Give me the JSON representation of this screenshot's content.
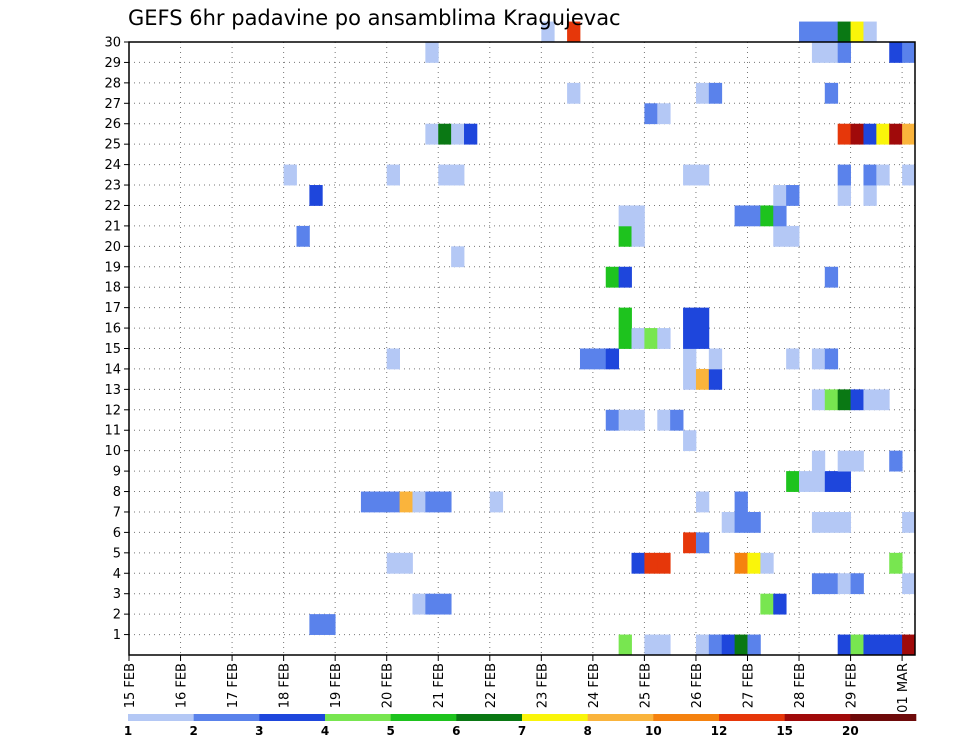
{
  "chart_data": {
    "type": "heatmap",
    "title": "GEFS 6hr padavine po ansamblima Kragujevac",
    "y_ticks": [
      "1",
      "2",
      "3",
      "4",
      "5",
      "6",
      "7",
      "8",
      "9",
      "10",
      "11",
      "12",
      "13",
      "14",
      "15",
      "16",
      "17",
      "18",
      "19",
      "20",
      "21",
      "22",
      "23",
      "24",
      "25",
      "26",
      "27",
      "28",
      "29",
      "30"
    ],
    "x_ticks": [
      "15 FEB",
      "16 FEB",
      "17 FEB",
      "18 FEB",
      "19 FEB",
      "20 FEB",
      "21 FEB",
      "22 FEB",
      "23 FEB",
      "24 FEB",
      "25 FEB",
      "26 FEB",
      "27 FEB",
      "28 FEB",
      "29 FEB",
      "01 MAR"
    ],
    "x_ticks_note": "each date tick = 00 UTC; 4 six-hour steps per day",
    "colorbar": {
      "labels": [
        "1",
        "2",
        "3",
        "4",
        "5",
        "6",
        "7",
        "8",
        "10",
        "12",
        "15",
        "20"
      ],
      "colors": [
        "#b4c8f5",
        "#5a82eb",
        "#1e46dc",
        "#78e650",
        "#1ec31e",
        "#0a7814",
        "#faf50a",
        "#fab43c",
        "#f5820f",
        "#e6370a",
        "#a00a0a",
        "#6e0a0a"
      ]
    },
    "cells": [
      {
        "m": 1,
        "s": 14,
        "v": 2
      },
      {
        "m": 1,
        "s": 15,
        "v": 2
      },
      {
        "m": 2,
        "s": 22,
        "v": 1
      },
      {
        "m": 2,
        "s": 23,
        "v": 2
      },
      {
        "m": 2,
        "s": 24,
        "v": 2
      },
      {
        "m": 2,
        "s": 49,
        "v": 4
      },
      {
        "m": 2,
        "s": 50,
        "v": 3
      },
      {
        "m": 3,
        "s": 53,
        "v": 2
      },
      {
        "m": 3,
        "s": 54,
        "v": 2
      },
      {
        "m": 3,
        "s": 55,
        "v": 1
      },
      {
        "m": 3,
        "s": 56,
        "v": 2
      },
      {
        "m": 3,
        "s": 60,
        "v": 1
      },
      {
        "m": 4,
        "s": 20,
        "v": 1
      },
      {
        "m": 4,
        "s": 21,
        "v": 1
      },
      {
        "m": 4,
        "s": 39,
        "v": 3
      },
      {
        "m": 4,
        "s": 40,
        "v": 12
      },
      {
        "m": 4,
        "s": 41,
        "v": 12
      },
      {
        "m": 4,
        "s": 47,
        "v": 10
      },
      {
        "m": 4,
        "s": 48,
        "v": 7
      },
      {
        "m": 4,
        "s": 49,
        "v": 1
      },
      {
        "m": 4,
        "s": 59,
        "v": 4
      },
      {
        "m": 5,
        "s": 43,
        "v": 12
      },
      {
        "m": 5,
        "s": 44,
        "v": 2
      },
      {
        "m": 6,
        "s": 46,
        "v": 1
      },
      {
        "m": 6,
        "s": 47,
        "v": 2
      },
      {
        "m": 6,
        "s": 48,
        "v": 2
      },
      {
        "m": 6,
        "s": 53,
        "v": 1
      },
      {
        "m": 6,
        "s": 54,
        "v": 1
      },
      {
        "m": 6,
        "s": 55,
        "v": 1
      },
      {
        "m": 6,
        "s": 60,
        "v": 1
      },
      {
        "m": 7,
        "s": 18,
        "v": 2
      },
      {
        "m": 7,
        "s": 19,
        "v": 2
      },
      {
        "m": 7,
        "s": 20,
        "v": 2
      },
      {
        "m": 7,
        "s": 21,
        "v": 8
      },
      {
        "m": 7,
        "s": 22,
        "v": 1
      },
      {
        "m": 7,
        "s": 23,
        "v": 2
      },
      {
        "m": 7,
        "s": 24,
        "v": 2
      },
      {
        "m": 7,
        "s": 28,
        "v": 1
      },
      {
        "m": 7,
        "s": 44,
        "v": 1
      },
      {
        "m": 7,
        "s": 47,
        "v": 2
      },
      {
        "m": 8,
        "s": 51,
        "v": 5
      },
      {
        "m": 8,
        "s": 52,
        "v": 1
      },
      {
        "m": 8,
        "s": 53,
        "v": 1
      },
      {
        "m": 8,
        "s": 54,
        "v": 3
      },
      {
        "m": 8,
        "s": 55,
        "v": 3
      },
      {
        "m": 9,
        "s": 53,
        "v": 1
      },
      {
        "m": 9,
        "s": 55,
        "v": 1
      },
      {
        "m": 9,
        "s": 56,
        "v": 1
      },
      {
        "m": 9,
        "s": 59,
        "v": 2
      },
      {
        "m": 10,
        "s": 43,
        "v": 1
      },
      {
        "m": 11,
        "s": 37,
        "v": 2
      },
      {
        "m": 11,
        "s": 38,
        "v": 1
      },
      {
        "m": 11,
        "s": 39,
        "v": 1
      },
      {
        "m": 11,
        "s": 41,
        "v": 1
      },
      {
        "m": 11,
        "s": 42,
        "v": 2
      },
      {
        "m": 12,
        "s": 53,
        "v": 1
      },
      {
        "m": 12,
        "s": 54,
        "v": 4
      },
      {
        "m": 12,
        "s": 55,
        "v": 6
      },
      {
        "m": 12,
        "s": 56,
        "v": 3
      },
      {
        "m": 12,
        "s": 57,
        "v": 1
      },
      {
        "m": 12,
        "s": 58,
        "v": 1
      },
      {
        "m": 13,
        "s": 43,
        "v": 1
      },
      {
        "m": 13,
        "s": 44,
        "v": 8
      },
      {
        "m": 13,
        "s": 45,
        "v": 3
      },
      {
        "m": 14,
        "s": 20,
        "v": 1
      },
      {
        "m": 14,
        "s": 35,
        "v": 2
      },
      {
        "m": 14,
        "s": 36,
        "v": 2
      },
      {
        "m": 14,
        "s": 37,
        "v": 3
      },
      {
        "m": 14,
        "s": 43,
        "v": 1
      },
      {
        "m": 14,
        "s": 45,
        "v": 1
      },
      {
        "m": 14,
        "s": 51,
        "v": 1
      },
      {
        "m": 14,
        "s": 53,
        "v": 1
      },
      {
        "m": 14,
        "s": 54,
        "v": 2
      },
      {
        "m": 15,
        "s": 38,
        "v": 5
      },
      {
        "m": 15,
        "s": 39,
        "v": 1
      },
      {
        "m": 15,
        "s": 40,
        "v": 4
      },
      {
        "m": 15,
        "s": 41,
        "v": 1
      },
      {
        "m": 15,
        "s": 43,
        "v": 3
      },
      {
        "m": 15,
        "s": 44,
        "v": 3
      },
      {
        "m": 16,
        "s": 38,
        "v": 5
      },
      {
        "m": 16,
        "s": 43,
        "v": 3
      },
      {
        "m": 16,
        "s": 44,
        "v": 3
      },
      {
        "m": 18,
        "s": 37,
        "v": 5
      },
      {
        "m": 18,
        "s": 38,
        "v": 3
      },
      {
        "m": 18,
        "s": 54,
        "v": 2
      },
      {
        "m": 19,
        "s": 25,
        "v": 1
      },
      {
        "m": 20,
        "s": 13,
        "v": 2
      },
      {
        "m": 20,
        "s": 38,
        "v": 5
      },
      {
        "m": 20,
        "s": 39,
        "v": 1
      },
      {
        "m": 20,
        "s": 50,
        "v": 1
      },
      {
        "m": 20,
        "s": 51,
        "v": 1
      },
      {
        "m": 21,
        "s": 38,
        "v": 1
      },
      {
        "m": 21,
        "s": 39,
        "v": 1
      },
      {
        "m": 21,
        "s": 47,
        "v": 2
      },
      {
        "m": 21,
        "s": 48,
        "v": 2
      },
      {
        "m": 21,
        "s": 49,
        "v": 5
      },
      {
        "m": 21,
        "s": 50,
        "v": 2
      },
      {
        "m": 22,
        "s": 14,
        "v": 3
      },
      {
        "m": 22,
        "s": 50,
        "v": 1
      },
      {
        "m": 22,
        "s": 51,
        "v": 2
      },
      {
        "m": 22,
        "s": 55,
        "v": 1
      },
      {
        "m": 22,
        "s": 57,
        "v": 1
      },
      {
        "m": 23,
        "s": 12,
        "v": 1
      },
      {
        "m": 23,
        "s": 20,
        "v": 1
      },
      {
        "m": 23,
        "s": 24,
        "v": 1
      },
      {
        "m": 23,
        "s": 25,
        "v": 1
      },
      {
        "m": 23,
        "s": 43,
        "v": 1
      },
      {
        "m": 23,
        "s": 44,
        "v": 1
      },
      {
        "m": 23,
        "s": 55,
        "v": 2
      },
      {
        "m": 23,
        "s": 57,
        "v": 2
      },
      {
        "m": 23,
        "s": 58,
        "v": 1
      },
      {
        "m": 23,
        "s": 60,
        "v": 1
      },
      {
        "m": 25,
        "s": 23,
        "v": 1
      },
      {
        "m": 25,
        "s": 24,
        "v": 6
      },
      {
        "m": 25,
        "s": 25,
        "v": 1
      },
      {
        "m": 25,
        "s": 26,
        "v": 3
      },
      {
        "m": 25,
        "s": 55,
        "v": 12
      },
      {
        "m": 25,
        "s": 56,
        "v": 15
      },
      {
        "m": 25,
        "s": 57,
        "v": 3
      },
      {
        "m": 25,
        "s": 58,
        "v": 7
      },
      {
        "m": 25,
        "s": 59,
        "v": 15
      },
      {
        "m": 25,
        "s": 60,
        "v": 8
      },
      {
        "m": 26,
        "s": 40,
        "v": 2
      },
      {
        "m": 26,
        "s": 41,
        "v": 1
      },
      {
        "m": 27,
        "s": 34,
        "v": 1
      },
      {
        "m": 27,
        "s": 44,
        "v": 1
      },
      {
        "m": 27,
        "s": 45,
        "v": 2
      },
      {
        "m": 27,
        "s": 54,
        "v": 2
      },
      {
        "m": 29,
        "s": 23,
        "v": 1
      },
      {
        "m": 29,
        "s": 53,
        "v": 1
      },
      {
        "m": 29,
        "s": 54,
        "v": 1
      },
      {
        "m": 29,
        "s": 55,
        "v": 2
      },
      {
        "m": 29,
        "s": 59,
        "v": 3
      },
      {
        "m": 29,
        "s": 60,
        "v": 2
      },
      {
        "m": 30,
        "s": 32,
        "v": 1
      },
      {
        "m": 30,
        "s": 34,
        "v": 12
      },
      {
        "m": 30,
        "s": 52,
        "v": 2
      },
      {
        "m": 30,
        "s": 53,
        "v": 2
      },
      {
        "m": 30,
        "s": 54,
        "v": 2
      },
      {
        "m": 30,
        "s": 55,
        "v": 6
      },
      {
        "m": 30,
        "s": 56,
        "v": 7
      },
      {
        "m": 30,
        "s": 57,
        "v": 1
      },
      {
        "m": 0,
        "s": 38,
        "v": 4
      },
      {
        "m": 0,
        "s": 40,
        "v": 1
      },
      {
        "m": 0,
        "s": 41,
        "v": 1
      },
      {
        "m": 0,
        "s": 44,
        "v": 1
      },
      {
        "m": 0,
        "s": 45,
        "v": 2
      },
      {
        "m": 0,
        "s": 46,
        "v": 3
      },
      {
        "m": 0,
        "s": 47,
        "v": 6
      },
      {
        "m": 0,
        "s": 48,
        "v": 2
      },
      {
        "m": 0,
        "s": 55,
        "v": 3
      },
      {
        "m": 0,
        "s": 56,
        "v": 4
      },
      {
        "m": 0,
        "s": 57,
        "v": 3
      },
      {
        "m": 0,
        "s": 58,
        "v": 3
      },
      {
        "m": 0,
        "s": 59,
        "v": 3
      },
      {
        "m": 0,
        "s": 60,
        "v": 15
      }
    ]
  }
}
